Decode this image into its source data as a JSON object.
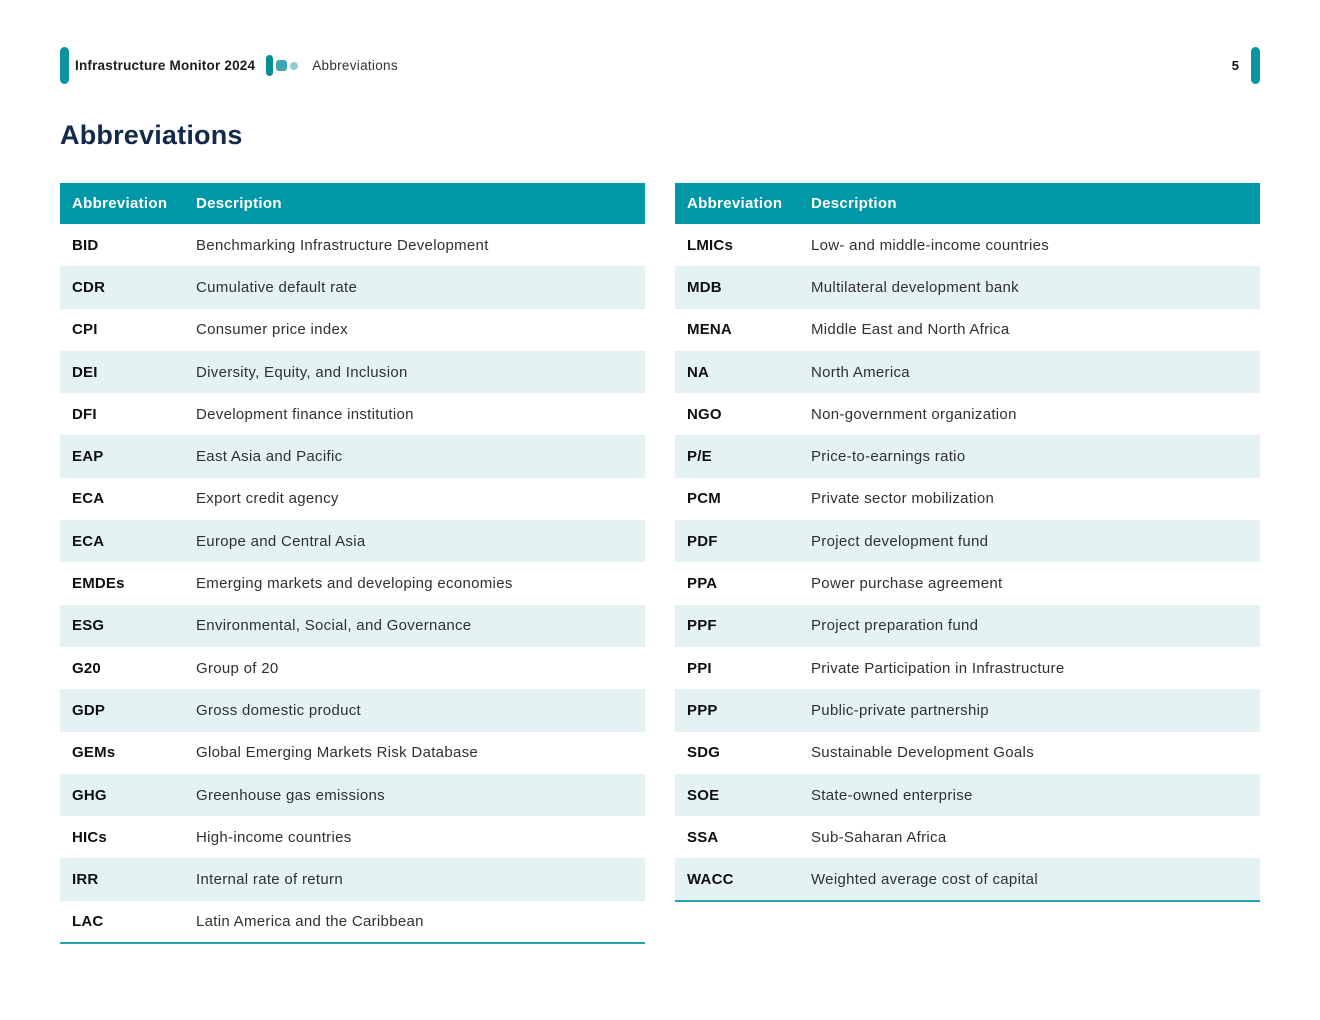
{
  "header": {
    "brand": "Infrastructure Monitor 2024",
    "section": "Abbreviations",
    "page_number": "5"
  },
  "page_title": "Abbreviations",
  "table": {
    "columns": [
      "Abbreviation",
      "Description"
    ]
  },
  "tables": {
    "left": [
      {
        "abbr": "BID",
        "desc": "Benchmarking Infrastructure Development"
      },
      {
        "abbr": "CDR",
        "desc": "Cumulative default rate"
      },
      {
        "abbr": "CPI",
        "desc": "Consumer price index"
      },
      {
        "abbr": "DEI",
        "desc": "Diversity, Equity, and Inclusion"
      },
      {
        "abbr": "DFI",
        "desc": "Development finance institution"
      },
      {
        "abbr": "EAP",
        "desc": "East Asia and Pacific"
      },
      {
        "abbr": "ECA",
        "desc": "Export credit agency"
      },
      {
        "abbr": "ECA",
        "desc": "Europe and Central Asia"
      },
      {
        "abbr": "EMDEs",
        "desc": "Emerging markets and developing economies"
      },
      {
        "abbr": "ESG",
        "desc": "Environmental, Social, and Governance"
      },
      {
        "abbr": "G20",
        "desc": "Group of 20"
      },
      {
        "abbr": "GDP",
        "desc": "Gross domestic product"
      },
      {
        "abbr": "GEMs",
        "desc": "Global Emerging Markets Risk Database"
      },
      {
        "abbr": "GHG",
        "desc": "Greenhouse gas emissions"
      },
      {
        "abbr": "HICs",
        "desc": "High-income countries"
      },
      {
        "abbr": "IRR",
        "desc": "Internal rate of return"
      },
      {
        "abbr": "LAC",
        "desc": "Latin America and the Caribbean"
      }
    ],
    "right": [
      {
        "abbr": "LMICs",
        "desc": "Low- and middle-income countries"
      },
      {
        "abbr": "MDB",
        "desc": "Multilateral development bank"
      },
      {
        "abbr": "MENA",
        "desc": "Middle East and North Africa"
      },
      {
        "abbr": "NA",
        "desc": "North America"
      },
      {
        "abbr": "NGO",
        "desc": "Non-government organization"
      },
      {
        "abbr": "P/E",
        "desc": "Price-to-earnings ratio"
      },
      {
        "abbr": "PCM",
        "desc": "Private sector mobilization"
      },
      {
        "abbr": "PDF",
        "desc": "Project development fund"
      },
      {
        "abbr": "PPA",
        "desc": "Power purchase agreement"
      },
      {
        "abbr": "PPF",
        "desc": "Project preparation fund"
      },
      {
        "abbr": "PPI",
        "desc": "Private Participation in Infrastructure"
      },
      {
        "abbr": "PPP",
        "desc": "Public-private partnership"
      },
      {
        "abbr": "SDG",
        "desc": "Sustainable Development Goals"
      },
      {
        "abbr": "SOE",
        "desc": "State-owned enterprise"
      },
      {
        "abbr": "SSA",
        "desc": "Sub-Saharan Africa"
      },
      {
        "abbr": "WACC",
        "desc": "Weighted average cost of capital"
      }
    ]
  },
  "colors": {
    "teal": "#0098A6",
    "teal-accent": "#0C93A0",
    "teal-border": "#29A3B1",
    "row-alt": "#E4F2F3",
    "navy": "#152A4A",
    "icon-dark": "#0B8C99",
    "icon-mid": "#41A6B2",
    "icon-light": "#8FCAD1"
  }
}
